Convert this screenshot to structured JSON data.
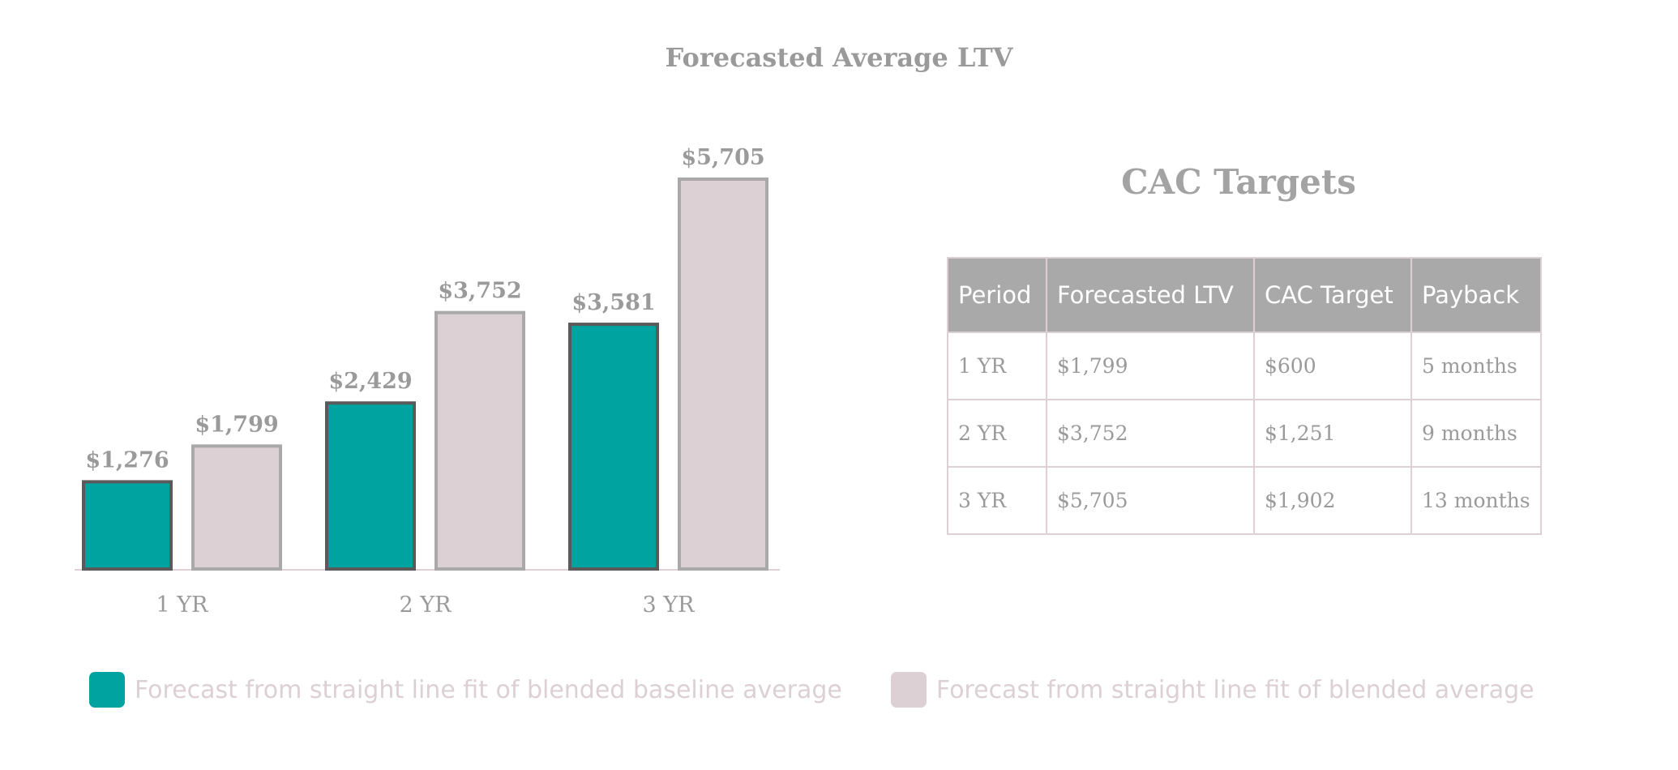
{
  "chart_data": {
    "type": "bar",
    "title": "Forecasted Average LTV",
    "categories": [
      "1 YR",
      "2 YR",
      "3 YR"
    ],
    "series": [
      {
        "name": "Forecast from straight line fit of blended baseline average",
        "values": [
          1276,
          2429,
          3581
        ],
        "labels": [
          "$1,276",
          "$2,429",
          "$3,581"
        ],
        "color": "#00a39f",
        "stroke": "#5a5a5a"
      },
      {
        "name": "Forecast from straight line fit of blended average",
        "values": [
          1799,
          3752,
          5705
        ],
        "labels": [
          "$1,799",
          "$3,752",
          "$5,705"
        ],
        "color": "#dcd0d4",
        "stroke": "#a9a9a9"
      }
    ],
    "ylim": [
      0,
      5705
    ],
    "grid": false,
    "legend": "bottom"
  },
  "table": {
    "title": "CAC Targets",
    "headers": [
      "Period",
      "Forecasted LTV",
      "CAC Target",
      "Payback"
    ],
    "rows": [
      [
        "1 YR",
        "$1,799",
        "$600",
        "5 months"
      ],
      [
        "2 YR",
        "$3,752",
        "$1,251",
        "9 months"
      ],
      [
        "3 YR",
        "$5,705",
        "$1,902",
        "13 months"
      ]
    ]
  },
  "colors": {
    "accent_teal": "#00a39f",
    "accent_pink": "#dcd0d4",
    "header_gray": "#a9a9a9",
    "text_gray": "#9a9a9a"
  }
}
